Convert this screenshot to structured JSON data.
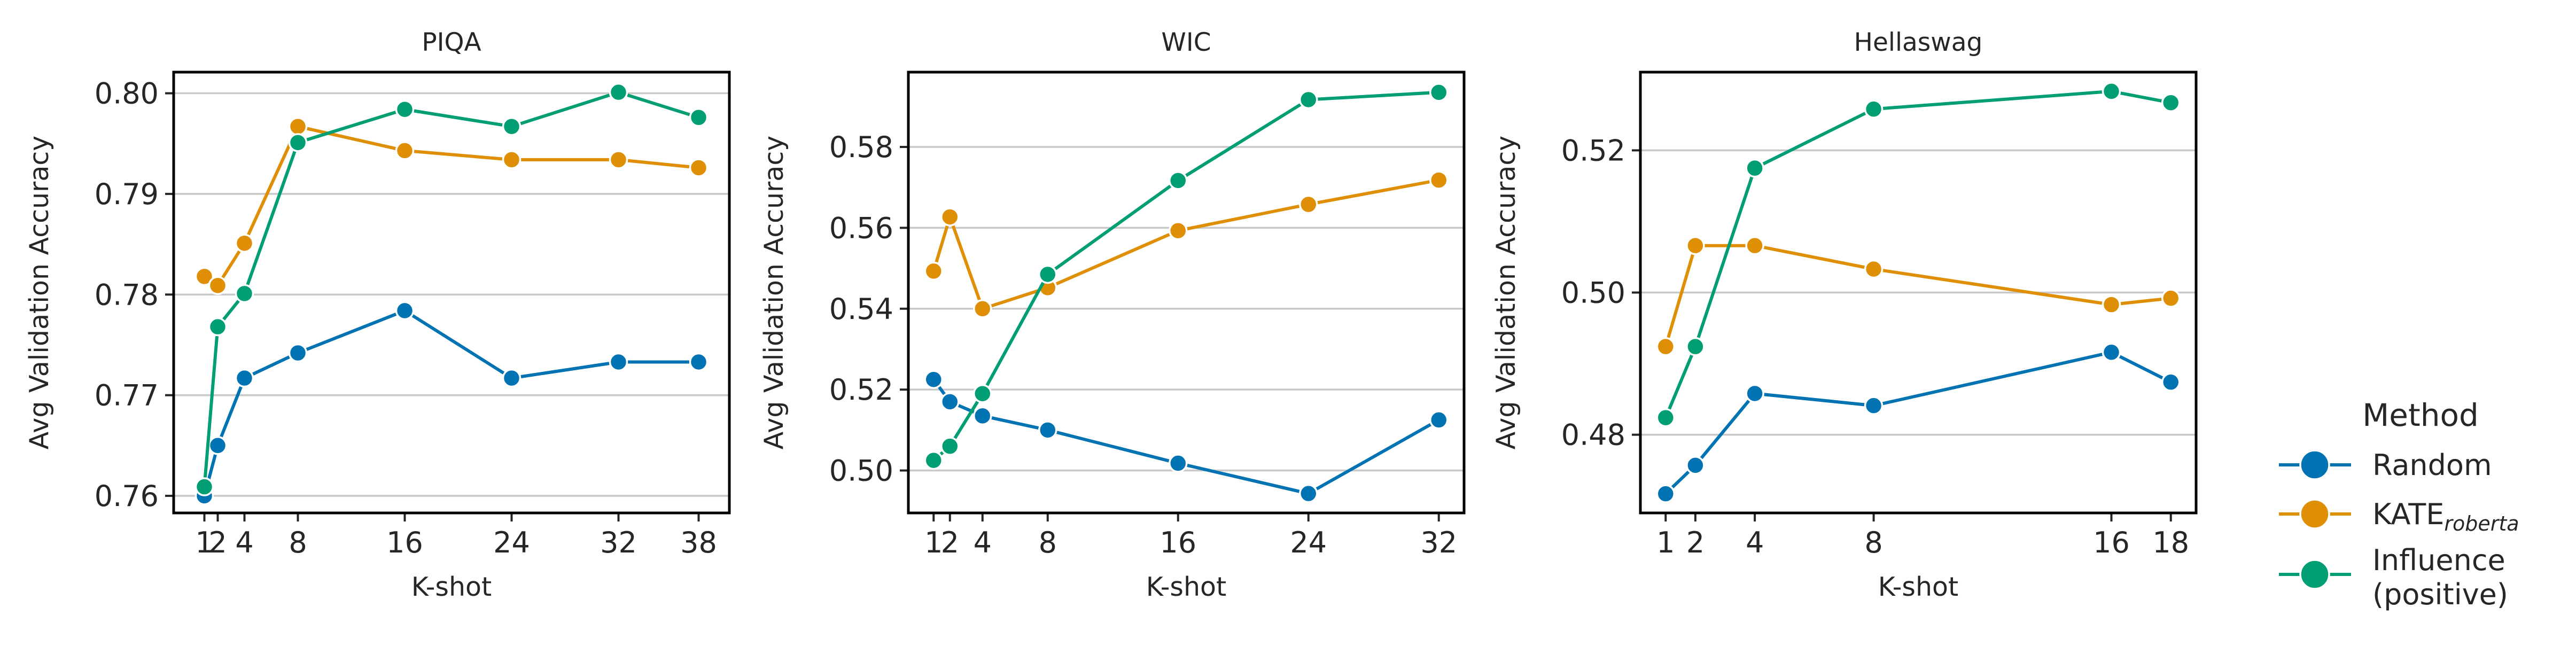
{
  "colors": {
    "random": "#0173b2",
    "kate": "#de8f05",
    "influence": "#029e73"
  },
  "legend": {
    "title": "Method",
    "placement": "right",
    "entries": [
      {
        "key": "random",
        "lines": [
          "Random"
        ]
      },
      {
        "key": "kate",
        "lines": [
          "KATE"
        ],
        "subscript": "roberta"
      },
      {
        "key": "influence",
        "lines": [
          "Influence",
          "(positive)"
        ]
      }
    ]
  },
  "chart_data": [
    {
      "type": "line",
      "title": "PIQA",
      "xlabel": "K-shot",
      "ylabel": "Avg Validation Accuracy",
      "xticks": [
        1,
        2,
        4,
        8,
        16,
        24,
        32,
        38
      ],
      "xlim": [
        -1.3,
        40.3
      ],
      "yticks": [
        "0.76",
        "0.77",
        "0.78",
        "0.79",
        "0.80"
      ],
      "ylim": [
        0.7583,
        0.8021
      ],
      "grid": "y",
      "x": [
        1,
        2,
        4,
        8,
        16,
        24,
        32,
        38
      ],
      "series": [
        {
          "key": "random",
          "name": "Random",
          "values": [
            0.76,
            0.765,
            0.7717,
            0.7742,
            0.7784,
            0.7717,
            0.7733,
            0.7733
          ]
        },
        {
          "key": "kate",
          "name": "KATEroberta",
          "values": [
            0.7818,
            0.7809,
            0.7851,
            0.7967,
            0.7943,
            0.7934,
            0.7934,
            0.7926
          ]
        },
        {
          "key": "influence",
          "name": "Influence (positive)",
          "values": [
            0.7609,
            0.7768,
            0.7801,
            0.7951,
            0.7984,
            0.7967,
            0.8001,
            0.7976
          ]
        }
      ]
    },
    {
      "type": "line",
      "title": "WIC",
      "xlabel": "K-shot",
      "ylabel": "Avg Validation Accuracy",
      "xticks": [
        1,
        2,
        4,
        8,
        16,
        24,
        32
      ],
      "xlim": [
        -0.55,
        33.55
      ],
      "yticks": [
        "0.50",
        "0.52",
        "0.54",
        "0.56",
        "0.58"
      ],
      "ylim": [
        0.4895,
        0.5985
      ],
      "grid": "y",
      "x": [
        1,
        2,
        4,
        8,
        16,
        24,
        32
      ],
      "series": [
        {
          "key": "random",
          "name": "Random",
          "values": [
            0.5225,
            0.517,
            0.5135,
            0.51,
            0.5018,
            0.4943,
            0.5125
          ]
        },
        {
          "key": "kate",
          "name": "KATEroberta",
          "values": [
            0.5493,
            0.5627,
            0.54,
            0.5452,
            0.5593,
            0.5658,
            0.5718
          ]
        },
        {
          "key": "influence",
          "name": "Influence (positive)",
          "values": [
            0.5025,
            0.506,
            0.519,
            0.5485,
            0.5717,
            0.5917,
            0.5935
          ]
        }
      ]
    },
    {
      "type": "line",
      "title": "Hellaswag",
      "xlabel": "K-shot",
      "ylabel": "Avg Validation Accuracy",
      "xticks": [
        1,
        2,
        4,
        8,
        16,
        18
      ],
      "xlim": [
        0.15,
        18.85
      ],
      "yticks": [
        "0.48",
        "0.50",
        "0.52"
      ],
      "ylim": [
        0.469,
        0.531
      ],
      "grid": "y",
      "x": [
        1,
        2,
        4,
        8,
        16,
        18
      ],
      "series": [
        {
          "key": "random",
          "name": "Random",
          "values": [
            0.4717,
            0.4757,
            0.4858,
            0.4841,
            0.4916,
            0.4874
          ]
        },
        {
          "key": "kate",
          "name": "KATEroberta",
          "values": [
            0.4924,
            0.5066,
            0.5066,
            0.5033,
            0.4983,
            0.4992
          ]
        },
        {
          "key": "influence",
          "name": "Influence (positive)",
          "values": [
            0.4824,
            0.4924,
            0.5175,
            0.5258,
            0.5283,
            0.5267
          ]
        }
      ]
    }
  ]
}
